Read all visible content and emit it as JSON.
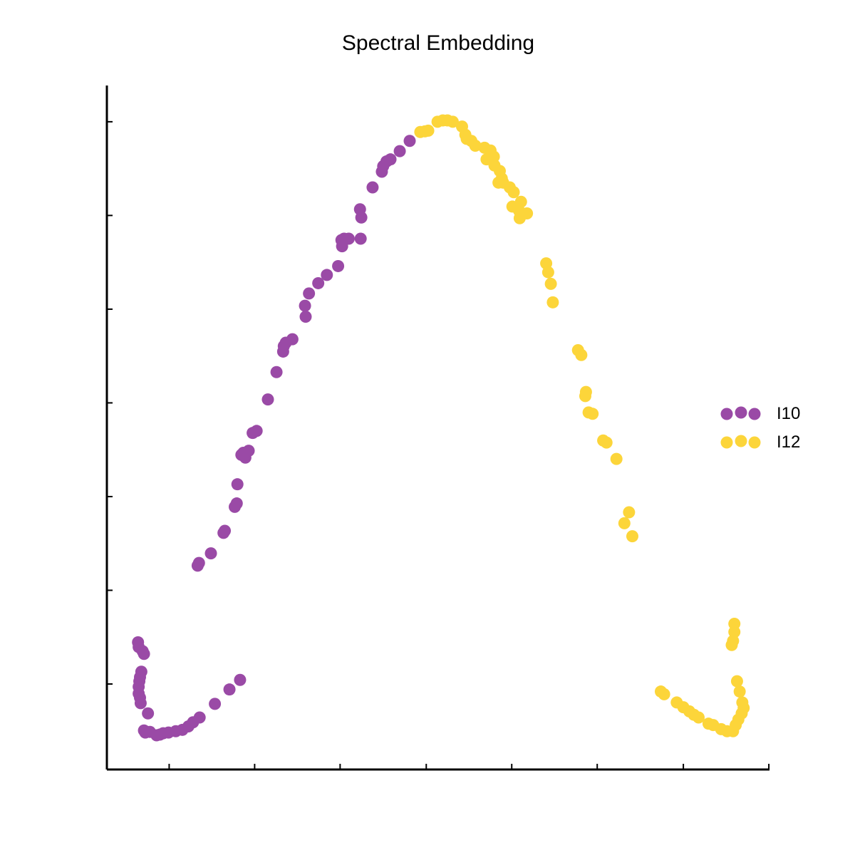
{
  "chart_data": {
    "type": "scatter",
    "title": "Spectral Embedding",
    "xlabel": "",
    "ylabel": "",
    "xlim": [
      0,
      100
    ],
    "ylim": [
      0,
      100
    ],
    "x_ticks": [
      9.4,
      22.3,
      35.2,
      48.2,
      61.1,
      74.0,
      87.0,
      99.9
    ],
    "y_ticks": [
      12.5,
      26.2,
      39.9,
      53.6,
      67.3,
      81.0,
      94.7
    ],
    "tick_labels_shown": false,
    "grid": false,
    "legend_position": "right",
    "series": [
      {
        "name": "I10",
        "color": "#9a4aa6",
        "points": [
          [
            4.8,
            17.9
          ],
          [
            4.7,
            18.6
          ],
          [
            5.6,
            16.9
          ],
          [
            5.4,
            17.3
          ],
          [
            5.2,
            14.3
          ],
          [
            5.0,
            13.5
          ],
          [
            4.9,
            12.9
          ],
          [
            4.8,
            12.1
          ],
          [
            4.8,
            11.1
          ],
          [
            5.0,
            10.5
          ],
          [
            5.1,
            9.7
          ],
          [
            6.2,
            8.2
          ],
          [
            5.8,
            5.4
          ],
          [
            5.6,
            5.7
          ],
          [
            6.5,
            5.5
          ],
          [
            7.5,
            5.0
          ],
          [
            8.0,
            5.1
          ],
          [
            8.5,
            5.3
          ],
          [
            9.3,
            5.4
          ],
          [
            10.4,
            5.6
          ],
          [
            11.4,
            5.8
          ],
          [
            12.3,
            6.3
          ],
          [
            13.0,
            6.9
          ],
          [
            14.0,
            7.6
          ],
          [
            16.3,
            9.6
          ],
          [
            18.5,
            11.7
          ],
          [
            20.1,
            13.1
          ],
          [
            13.7,
            29.8
          ],
          [
            13.9,
            30.2
          ],
          [
            15.7,
            31.6
          ],
          [
            17.6,
            34.6
          ],
          [
            17.8,
            34.9
          ],
          [
            19.3,
            38.4
          ],
          [
            19.6,
            38.9
          ],
          [
            19.7,
            41.7
          ],
          [
            20.3,
            46.0
          ],
          [
            20.9,
            45.6
          ],
          [
            21.4,
            46.6
          ],
          [
            20.6,
            46.3
          ],
          [
            22.0,
            49.2
          ],
          [
            22.6,
            49.5
          ],
          [
            24.3,
            54.1
          ],
          [
            25.6,
            58.1
          ],
          [
            26.6,
            61.1
          ],
          [
            26.7,
            61.9
          ],
          [
            27.0,
            62.4
          ],
          [
            28.0,
            62.9
          ],
          [
            30.0,
            66.2
          ],
          [
            29.9,
            67.8
          ],
          [
            30.5,
            69.6
          ],
          [
            31.9,
            71.1
          ],
          [
            33.2,
            72.3
          ],
          [
            34.9,
            73.6
          ],
          [
            35.5,
            76.5
          ],
          [
            35.4,
            77.4
          ],
          [
            35.8,
            77.6
          ],
          [
            36.5,
            77.6
          ],
          [
            38.3,
            77.6
          ],
          [
            38.4,
            80.7
          ],
          [
            38.2,
            81.9
          ],
          [
            40.1,
            85.1
          ],
          [
            41.5,
            87.4
          ],
          [
            41.7,
            88.2
          ],
          [
            42.2,
            88.9
          ],
          [
            42.8,
            89.2
          ],
          [
            44.2,
            90.4
          ],
          [
            45.7,
            91.9
          ]
        ]
      },
      {
        "name": "I12",
        "color": "#fcd53a",
        "points": [
          [
            47.3,
            93.2
          ],
          [
            48.0,
            93.3
          ],
          [
            48.5,
            93.4
          ],
          [
            49.9,
            94.7
          ],
          [
            50.7,
            94.9
          ],
          [
            51.4,
            94.9
          ],
          [
            52.2,
            94.7
          ],
          [
            53.6,
            94.0
          ],
          [
            54.1,
            92.8
          ],
          [
            54.3,
            92.2
          ],
          [
            55.0,
            91.9
          ],
          [
            55.6,
            91.2
          ],
          [
            57.0,
            90.9
          ],
          [
            57.9,
            90.5
          ],
          [
            58.4,
            89.6
          ],
          [
            57.3,
            89.2
          ],
          [
            58.5,
            88.3
          ],
          [
            59.3,
            87.5
          ],
          [
            59.6,
            86.4
          ],
          [
            59.1,
            85.8
          ],
          [
            59.8,
            85.8
          ],
          [
            60.8,
            85.1
          ],
          [
            61.4,
            84.4
          ],
          [
            62.5,
            83.0
          ],
          [
            61.2,
            82.3
          ],
          [
            62.2,
            81.7
          ],
          [
            63.4,
            81.3
          ],
          [
            62.3,
            80.6
          ],
          [
            66.3,
            74.0
          ],
          [
            66.6,
            72.7
          ],
          [
            67.0,
            71.0
          ],
          [
            67.3,
            68.3
          ],
          [
            71.1,
            61.3
          ],
          [
            71.6,
            60.6
          ],
          [
            72.3,
            55.2
          ],
          [
            72.2,
            54.6
          ],
          [
            72.7,
            52.2
          ],
          [
            73.3,
            52.0
          ],
          [
            74.9,
            48.1
          ],
          [
            75.4,
            47.8
          ],
          [
            76.9,
            45.4
          ],
          [
            78.8,
            37.6
          ],
          [
            78.1,
            36.0
          ],
          [
            79.3,
            34.1
          ],
          [
            83.6,
            11.4
          ],
          [
            84.1,
            11.0
          ],
          [
            86.0,
            9.8
          ],
          [
            87.0,
            9.1
          ],
          [
            87.9,
            8.5
          ],
          [
            88.6,
            8.0
          ],
          [
            89.3,
            7.6
          ],
          [
            90.8,
            6.7
          ],
          [
            91.5,
            6.5
          ],
          [
            92.7,
            5.9
          ],
          [
            93.6,
            5.6
          ],
          [
            94.5,
            5.6
          ],
          [
            94.9,
            6.5
          ],
          [
            95.3,
            7.3
          ],
          [
            95.8,
            8.2
          ],
          [
            96.1,
            9.0
          ],
          [
            95.9,
            9.8
          ],
          [
            95.5,
            11.4
          ],
          [
            95.1,
            12.9
          ],
          [
            94.3,
            18.2
          ],
          [
            94.5,
            18.8
          ],
          [
            94.7,
            20.1
          ],
          [
            94.7,
            21.3
          ]
        ]
      }
    ]
  }
}
